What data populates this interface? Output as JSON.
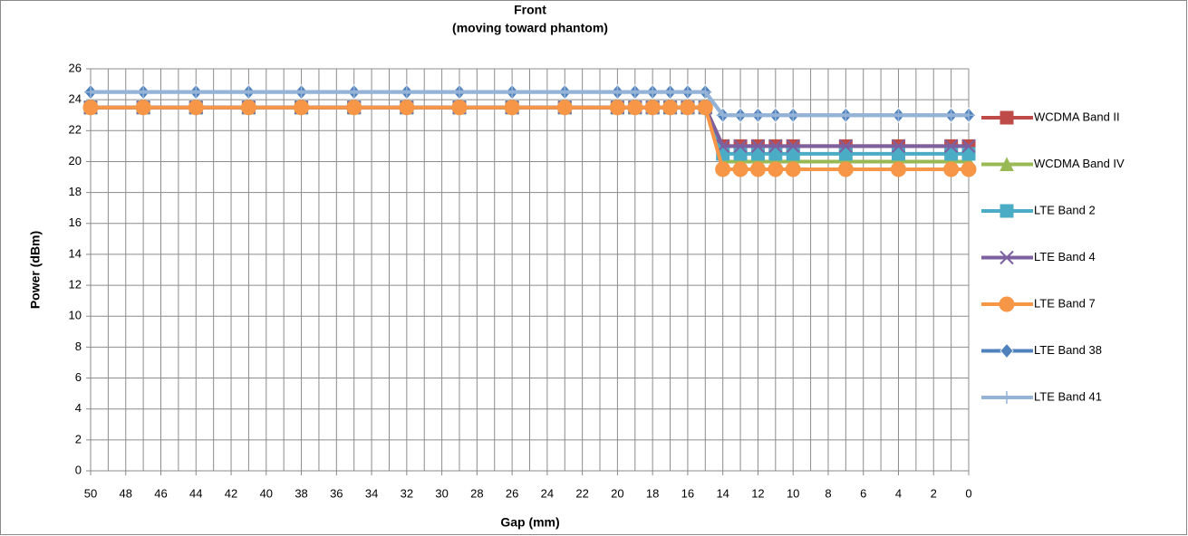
{
  "chart_data": {
    "type": "line",
    "title": "Front",
    "subtitle": "(moving toward phantom)",
    "x_label": "Gap (mm)",
    "y_label": "Power (dBm)",
    "x": [
      50,
      47,
      44,
      41,
      38,
      35,
      32,
      29,
      26,
      23,
      20,
      19,
      18,
      17,
      16,
      15,
      14,
      13,
      12,
      11,
      10,
      7,
      4,
      1,
      0
    ],
    "xlim": [
      50,
      0
    ],
    "xticks": [
      50,
      48,
      46,
      44,
      42,
      40,
      38,
      36,
      34,
      32,
      30,
      28,
      26,
      24,
      22,
      20,
      18,
      16,
      14,
      12,
      10,
      8,
      6,
      4,
      2,
      0
    ],
    "xminor_step": 1,
    "ylim": [
      0,
      26
    ],
    "yticks": [
      0,
      2,
      4,
      6,
      8,
      10,
      12,
      14,
      16,
      18,
      20,
      22,
      24,
      26
    ],
    "grid": true,
    "legend": "right",
    "series": [
      {
        "name": "WCDMA Band II",
        "color": "#be4b48",
        "marker": "square",
        "values": [
          23.5,
          23.5,
          23.5,
          23.5,
          23.5,
          23.5,
          23.5,
          23.5,
          23.5,
          23.5,
          23.5,
          23.5,
          23.5,
          23.5,
          23.5,
          23.5,
          21,
          21,
          21,
          21,
          21,
          21,
          21,
          21,
          21
        ]
      },
      {
        "name": "WCDMA Band IV",
        "color": "#98b954",
        "marker": "triangle",
        "values": [
          23.5,
          23.5,
          23.5,
          23.5,
          23.5,
          23.5,
          23.5,
          23.5,
          23.5,
          23.5,
          23.5,
          23.5,
          23.5,
          23.5,
          23.5,
          23.5,
          20,
          20,
          20,
          20,
          20,
          20,
          20,
          20,
          20
        ]
      },
      {
        "name": "LTE Band 2",
        "color": "#4bacc6",
        "marker": "square",
        "values": [
          23.5,
          23.5,
          23.5,
          23.5,
          23.5,
          23.5,
          23.5,
          23.5,
          23.5,
          23.5,
          23.5,
          23.5,
          23.5,
          23.5,
          23.5,
          23.5,
          20.5,
          20.5,
          20.5,
          20.5,
          20.5,
          20.5,
          20.5,
          20.5,
          20.5
        ]
      },
      {
        "name": "LTE Band 4",
        "color": "#7d60a0",
        "marker": "x",
        "values": [
          23.5,
          23.5,
          23.5,
          23.5,
          23.5,
          23.5,
          23.5,
          23.5,
          23.5,
          23.5,
          23.5,
          23.5,
          23.5,
          23.5,
          23.5,
          23.5,
          21,
          21,
          21,
          21,
          21,
          21,
          21,
          21,
          21
        ]
      },
      {
        "name": "LTE Band 7",
        "color": "#f79646",
        "marker": "circle",
        "values": [
          23.5,
          23.5,
          23.5,
          23.5,
          23.5,
          23.5,
          23.5,
          23.5,
          23.5,
          23.5,
          23.5,
          23.5,
          23.5,
          23.5,
          23.5,
          23.5,
          19.5,
          19.5,
          19.5,
          19.5,
          19.5,
          19.5,
          19.5,
          19.5,
          19.5
        ]
      },
      {
        "name": "LTE Band 38",
        "color": "#4f81bd",
        "marker": "diamond",
        "values": [
          24.5,
          24.5,
          24.5,
          24.5,
          24.5,
          24.5,
          24.5,
          24.5,
          24.5,
          24.5,
          24.5,
          24.5,
          24.5,
          24.5,
          24.5,
          24.5,
          23,
          23,
          23,
          23,
          23,
          23,
          23,
          23,
          23
        ]
      },
      {
        "name": "LTE Band 41",
        "color": "#95b3d7",
        "marker": "plus",
        "values": [
          24.5,
          24.5,
          24.5,
          24.5,
          24.5,
          24.5,
          24.5,
          24.5,
          24.5,
          24.5,
          24.5,
          24.5,
          24.5,
          24.5,
          24.5,
          24.5,
          23,
          23,
          23,
          23,
          23,
          23,
          23,
          23,
          23
        ]
      }
    ]
  }
}
